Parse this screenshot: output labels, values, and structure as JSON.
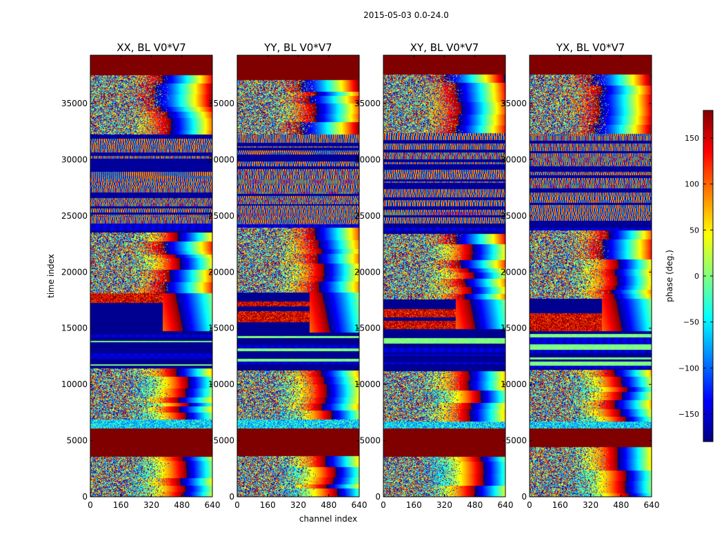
{
  "suptitle": "2015-05-03 0.0-24.0",
  "shared": {
    "xlabel": "channel index",
    "ylabel": "time index",
    "x_ticks": [
      0,
      160,
      320,
      480,
      640
    ],
    "y_ticks": [
      0,
      5000,
      10000,
      15000,
      20000,
      25000,
      30000,
      35000
    ],
    "xlim": [
      0,
      640
    ],
    "ylim": [
      0,
      39300
    ]
  },
  "colorbar": {
    "label": "phase (deg.)",
    "colormap": "jet",
    "range": [
      -180,
      180
    ],
    "ticks": [
      150,
      100,
      50,
      0,
      -50,
      -100,
      -150
    ],
    "tick_labels": [
      "150",
      "100",
      "50",
      "0",
      "−50",
      "−100",
      "−150"
    ]
  },
  "chart_data": [
    {
      "type": "heatmap",
      "title": "XX, BL V0*V7",
      "xlabel": "channel index",
      "ylabel": "time index",
      "xlim": [
        0,
        640
      ],
      "ylim": [
        0,
        39300
      ],
      "value": "phase (deg.)",
      "vmin": -180,
      "vmax": 180,
      "flagged_time_ranges": [
        [
          3400,
          6100
        ],
        [
          37000,
          39300
        ]
      ],
      "flagged_value": 180
    },
    {
      "type": "heatmap",
      "title": "YY, BL V0*V7",
      "xlabel": "channel index",
      "ylabel": "time index",
      "xlim": [
        0,
        640
      ],
      "ylim": [
        0,
        39300
      ],
      "value": "phase (deg.)",
      "vmin": -180,
      "vmax": 180,
      "flagged_time_ranges": [
        [
          3400,
          6100
        ],
        [
          37000,
          39300
        ]
      ],
      "flagged_value": 180
    },
    {
      "type": "heatmap",
      "title": "XY, BL V0*V7",
      "xlabel": "channel index",
      "ylabel": "time index",
      "xlim": [
        0,
        640
      ],
      "ylim": [
        0,
        39300
      ],
      "value": "phase (deg.)",
      "vmin": -180,
      "vmax": 180,
      "flagged_time_ranges": [
        [
          3400,
          6100
        ],
        [
          37000,
          39300
        ]
      ],
      "flagged_value": 180
    },
    {
      "type": "heatmap",
      "title": "YX, BL V0*V7",
      "xlabel": "channel index",
      "ylabel": "time index",
      "xlim": [
        0,
        640
      ],
      "ylim": [
        0,
        39300
      ],
      "value": "phase (deg.)",
      "vmin": -180,
      "vmax": 180,
      "flagged_time_ranges": [
        [
          3400,
          6100
        ],
        [
          37000,
          39300
        ]
      ],
      "flagged_value": 180
    }
  ]
}
